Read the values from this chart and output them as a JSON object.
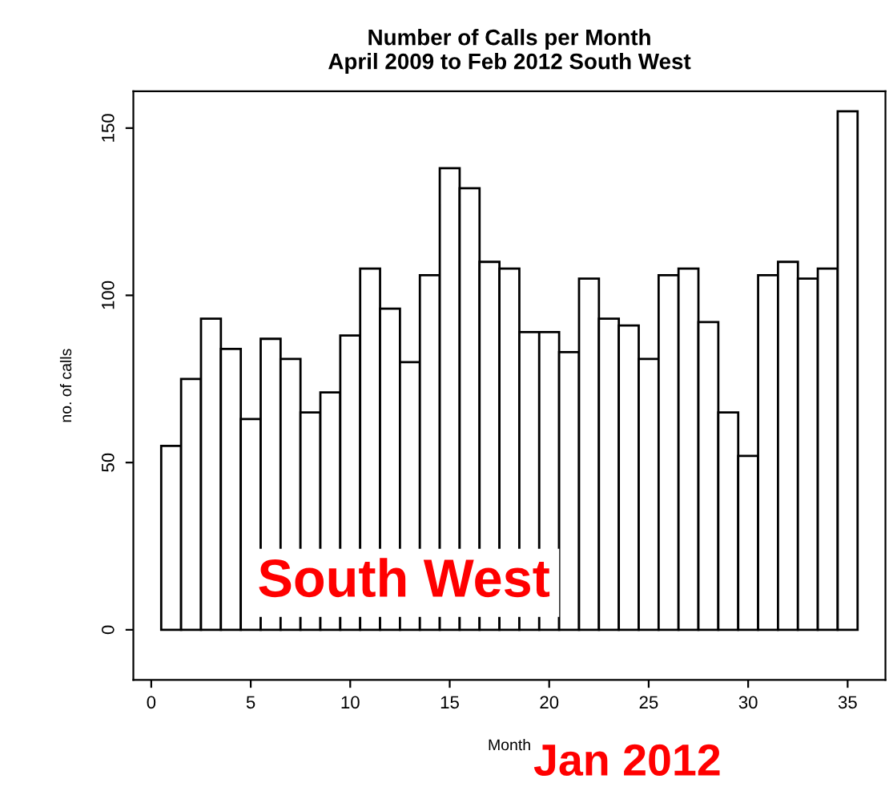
{
  "chart_data": {
    "type": "histogram",
    "title": "Number of Calls per Month\nApril 2009 to Feb 2012 South West",
    "xlabel": "Month",
    "ylabel": "no. of calls",
    "bins": [
      0.5,
      1.5,
      2.5,
      3.5,
      4.5,
      5.5,
      6.5,
      7.5,
      8.5,
      9.5,
      10.5,
      11.5,
      12.5,
      13.5,
      14.5,
      15.5,
      16.5,
      17.5,
      18.5,
      19.5,
      20.5,
      21.5,
      22.5,
      23.5,
      24.5,
      25.5,
      26.5,
      27.5,
      28.5,
      29.5,
      30.5,
      31.5,
      32.5,
      33.5,
      34.5,
      35.5
    ],
    "values": [
      55,
      75,
      93,
      84,
      63,
      87,
      81,
      65,
      71,
      88,
      108,
      96,
      80,
      106,
      138,
      132,
      110,
      108,
      89,
      89,
      83,
      105,
      93,
      91,
      81,
      106,
      108,
      92,
      65,
      52,
      106,
      110,
      105,
      108,
      155
    ],
    "color": "#ffffff",
    "xlim": [
      -0.9,
      36.9
    ],
    "xticks": [
      0,
      5,
      10,
      15,
      20,
      25,
      30,
      35
    ],
    "ylim": [
      -15,
      161
    ],
    "yticks": [
      0,
      50,
      100,
      150
    ],
    "grid": false,
    "annotations": [
      "South West",
      "Jan 2012"
    ]
  }
}
